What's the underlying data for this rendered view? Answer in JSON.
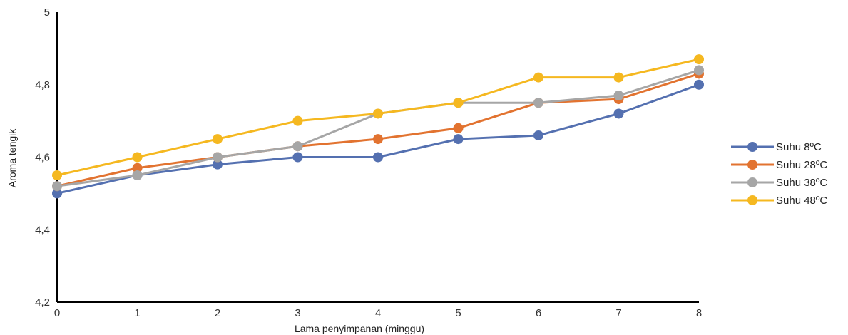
{
  "chart_data": {
    "type": "line",
    "title": "",
    "xlabel": "Lama penyimpanan (minggu)",
    "ylabel": "Aroma tengik",
    "x": [
      0,
      1,
      2,
      3,
      4,
      5,
      6,
      7,
      8
    ],
    "x_tick_labels": [
      "0",
      "1",
      "2",
      "3",
      "4",
      "5",
      "6",
      "7",
      "8"
    ],
    "ylim": [
      4.2,
      5
    ],
    "y_ticks": [
      4.2,
      4.4,
      4.6,
      4.8,
      5
    ],
    "y_tick_labels": [
      "4,2",
      "4,4",
      "4,6",
      "4,8",
      "5"
    ],
    "grid": false,
    "legend_position": "right",
    "series": [
      {
        "name": "Suhu 8ºC",
        "color": "#5470b0",
        "values": [
          4.5,
          4.55,
          4.58,
          4.6,
          4.6,
          4.65,
          4.66,
          4.72,
          4.8
        ]
      },
      {
        "name": "Suhu 28ºC",
        "color": "#e27330",
        "values": [
          4.52,
          4.57,
          4.6,
          4.63,
          4.65,
          4.68,
          4.75,
          4.76,
          4.83
        ]
      },
      {
        "name": "Suhu 38ºC",
        "color": "#a6a6a6",
        "values": [
          4.52,
          4.55,
          4.6,
          4.63,
          4.72,
          4.75,
          4.75,
          4.77,
          4.84
        ]
      },
      {
        "name": "Suhu 48ºC",
        "color": "#f5b820",
        "values": [
          4.55,
          4.6,
          4.65,
          4.7,
          4.72,
          4.75,
          4.82,
          4.82,
          4.87
        ]
      }
    ]
  }
}
